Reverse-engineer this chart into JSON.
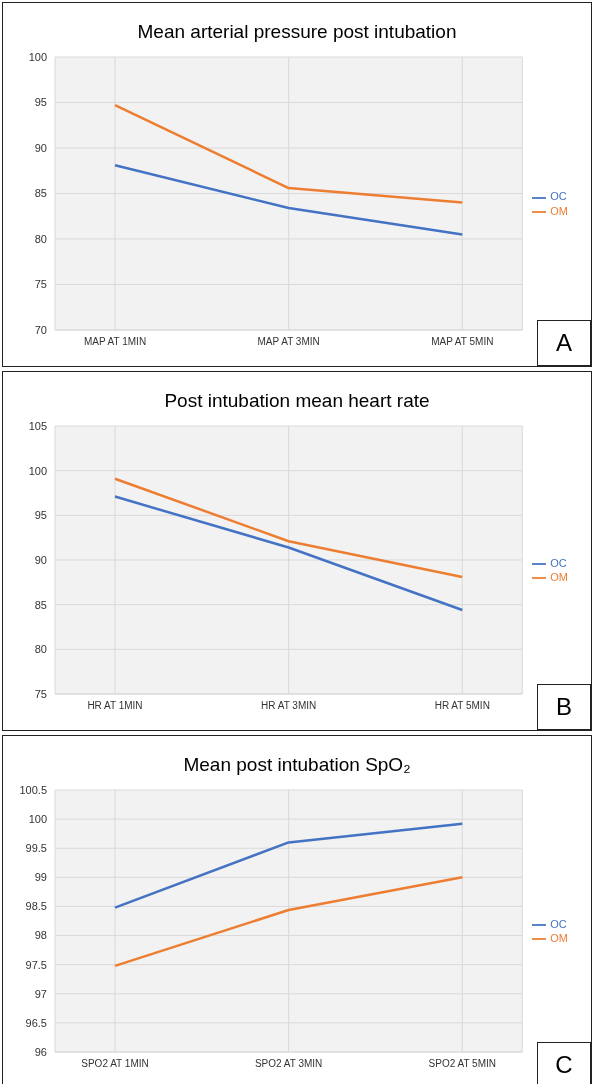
{
  "chart_data": [
    {
      "type": "line",
      "title": "Mean arterial pressure post intubation",
      "categories": [
        "MAP AT 1MIN",
        "MAP AT 3MIN",
        "MAP AT 5MIN"
      ],
      "series": [
        {
          "name": "OC",
          "color": "#4472c4",
          "values": [
            88.1,
            83.4,
            80.5
          ]
        },
        {
          "name": "OM",
          "color": "#ed7d31",
          "values": [
            94.7,
            85.6,
            84.0
          ]
        }
      ],
      "ylim": [
        70,
        100
      ],
      "yticks": [
        70,
        75,
        80,
        85,
        90,
        95,
        100
      ],
      "grid": true,
      "legend": "right",
      "marker": "none",
      "line_style": "solid",
      "annotations": [
        "A"
      ]
    },
    {
      "type": "line",
      "title": "Post intubation mean heart rate",
      "categories": [
        "HR AT 1MIN",
        "HR AT 3MIN",
        "HR AT 5MIN"
      ],
      "series": [
        {
          "name": "OC",
          "color": "#4472c4",
          "values": [
            97.1,
            91.4,
            84.4
          ]
        },
        {
          "name": "OM",
          "color": "#ed7d31",
          "values": [
            99.1,
            92.1,
            88.1
          ]
        }
      ],
      "ylim": [
        75,
        105
      ],
      "yticks": [
        75,
        80,
        85,
        90,
        95,
        100,
        105
      ],
      "grid": true,
      "legend": "right",
      "marker": "none",
      "line_style": "solid",
      "annotations": [
        "B"
      ]
    },
    {
      "type": "line",
      "title": "Mean post intubation SpO₂",
      "categories": [
        "SPO2 AT 1MIN",
        "SPO2 AT 3MIN",
        "SPO2 AT 5MIN"
      ],
      "series": [
        {
          "name": "OC",
          "color": "#4472c4",
          "values": [
            98.48,
            99.6,
            99.92
          ]
        },
        {
          "name": "OM",
          "color": "#ed7d31",
          "values": [
            97.48,
            98.44,
            99.0
          ]
        }
      ],
      "ylim": [
        96,
        100.5
      ],
      "yticks": [
        96,
        96.5,
        97,
        97.5,
        98,
        98.5,
        99,
        99.5,
        100,
        100.5
      ],
      "grid": true,
      "legend": "right",
      "marker": "none",
      "line_style": "solid",
      "annotations": [
        "C"
      ]
    }
  ]
}
